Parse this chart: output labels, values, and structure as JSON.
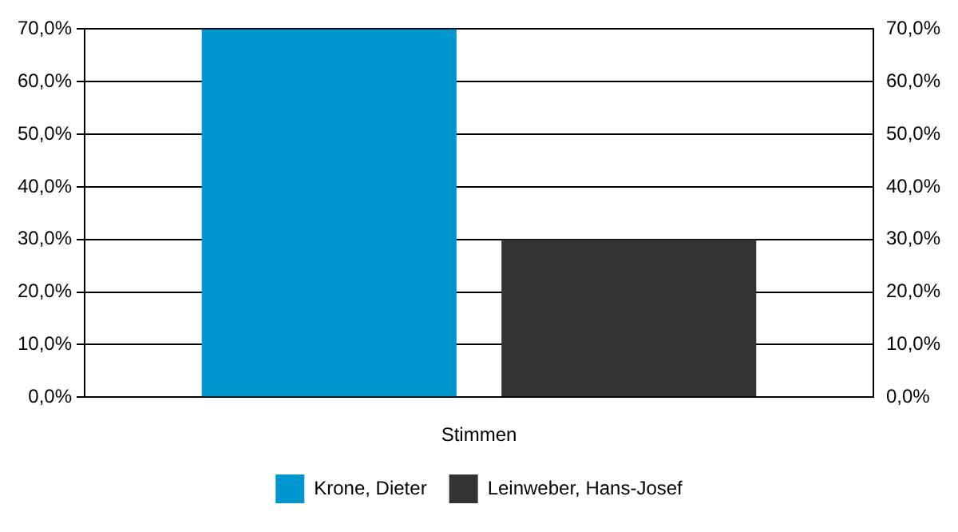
{
  "chart_data": {
    "type": "bar",
    "categories": [
      "Stimmen"
    ],
    "series": [
      {
        "name": "Krone, Dieter",
        "color": "#0096d0",
        "values": [
          70
        ]
      },
      {
        "name": "Leinweber, Hans-Josef",
        "color": "#333333",
        "values": [
          30
        ]
      }
    ],
    "ylim": [
      0,
      70
    ],
    "yticks": [
      {
        "value": 0,
        "label": "0,0%"
      },
      {
        "value": 10,
        "label": "10,0%"
      },
      {
        "value": 20,
        "label": "20,0%"
      },
      {
        "value": 30,
        "label": "30,0%"
      },
      {
        "value": 40,
        "label": "40,0%"
      },
      {
        "value": 50,
        "label": "50,0%"
      },
      {
        "value": 60,
        "label": "60,0%"
      },
      {
        "value": 70,
        "label": "70,0%"
      }
    ],
    "grid": "y",
    "legend": "bottom"
  }
}
